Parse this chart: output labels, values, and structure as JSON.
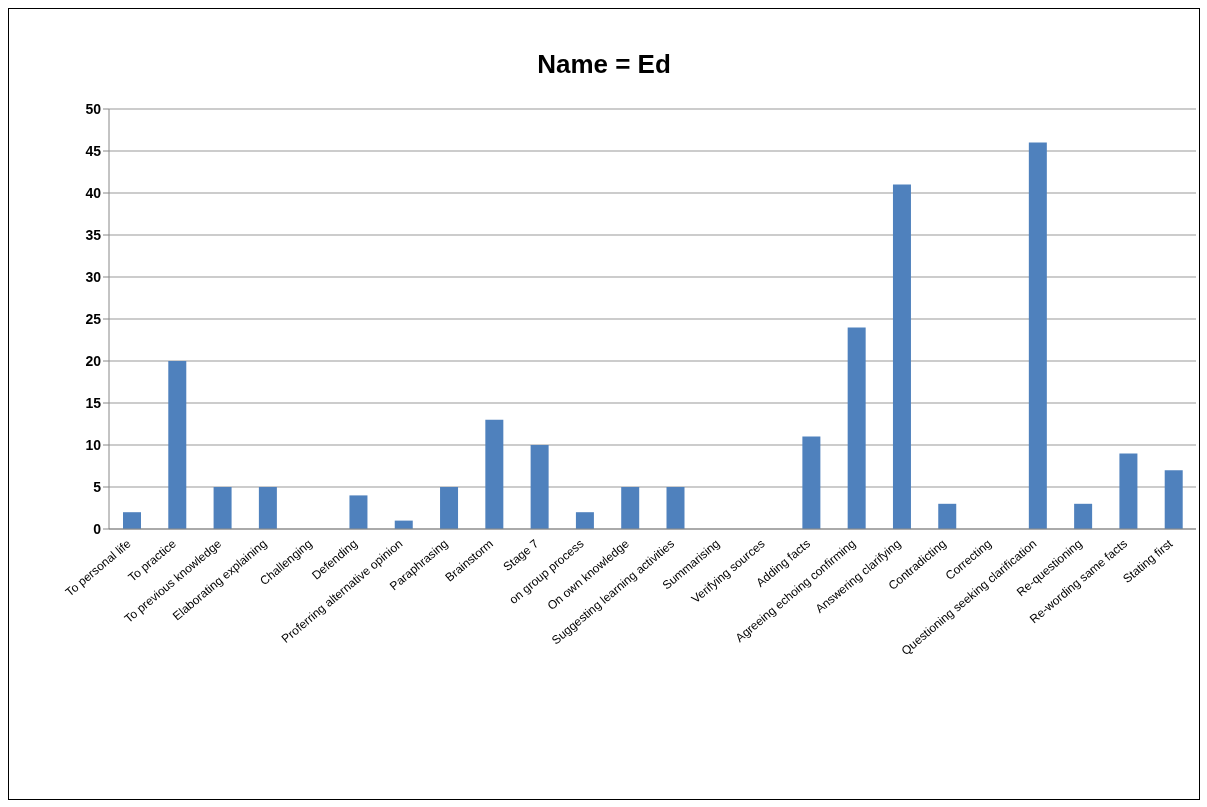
{
  "chart_data": {
    "type": "bar",
    "title": "Name = Ed",
    "categories": [
      "To personal life",
      "To practice",
      "To previous knowledge",
      "Elaborating explaining",
      "Challenging",
      "Defending",
      "Proferring alternative opinion",
      "Paraphrasing",
      "Brainstorm",
      "Stage 7",
      "on group process",
      "On own knowledge",
      "Suggesting learning activities",
      "Summarising",
      "Verifying sources",
      "Adding facts",
      "Agreeing echoing confirming",
      "Answering clarifying",
      "Contradicting",
      "Correcting",
      "Questioning seeking clarification",
      "Re-questioning",
      "Re-wording same facts",
      "Stating first"
    ],
    "values": [
      2,
      20,
      5,
      5,
      0,
      4,
      1,
      5,
      13,
      10,
      2,
      5,
      5,
      0,
      0,
      11,
      24,
      41,
      3,
      0,
      46,
      3,
      9,
      7
    ],
    "color": "#4f81bd",
    "ylim": [
      0,
      50
    ],
    "yticks": [
      0,
      5,
      10,
      15,
      20,
      25,
      30,
      35,
      40,
      45,
      50
    ],
    "grid": "y",
    "legend": false
  }
}
